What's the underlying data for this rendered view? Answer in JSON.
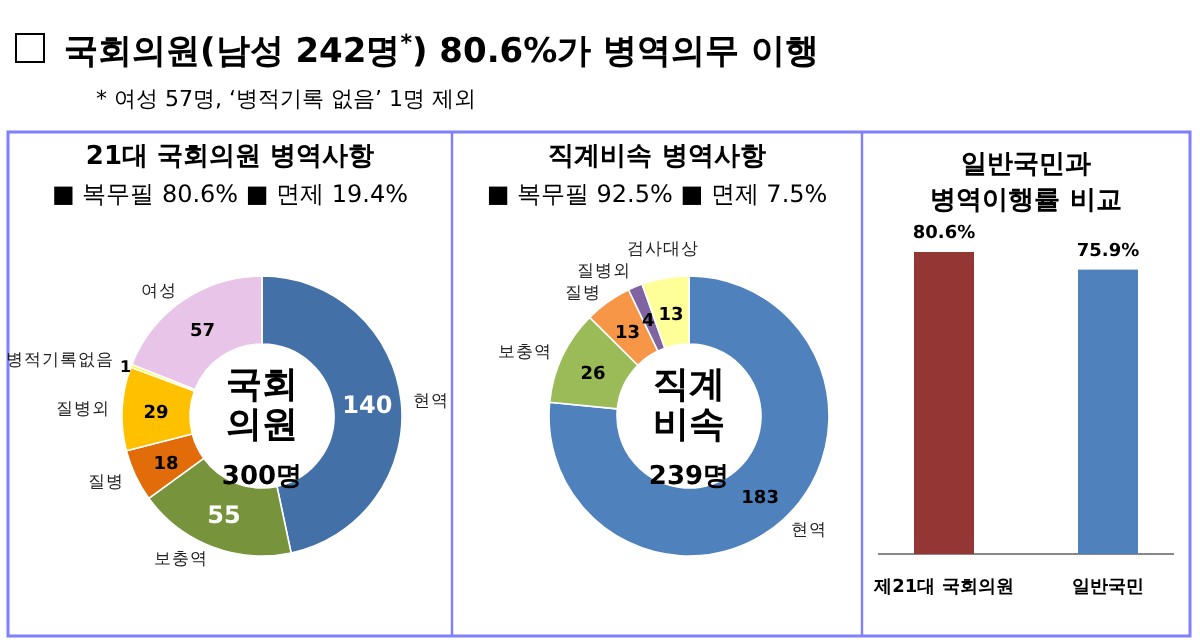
{
  "chart_data": [
    {
      "type": "other",
      "title": "국회의원(남성 242명$^{*}$) 80.6%가 병역의무 이행",
      "subtitle": "* 여성 57명, ‘병적기록 없음’ 1명 제외"
    },
    {
      "type": "donut",
      "title": "21대 국회의원 병역사항",
      "subtitle": "■ 복무필 80.6% ■ 면제 19.4%",
      "categories": [
        "현역",
        "보충역",
        "질병",
        "질병외",
        "병적기록없음",
        "여성"
      ],
      "values": [
        140,
        55,
        18,
        29,
        1,
        57
      ],
      "colors": [
        "#4470a8",
        "#77933c",
        "#e36c0a",
        "#ffc000",
        "#ffff00",
        "#e8c4e8"
      ],
      "data_labels": true,
      "annotations": [
        "국회\n의원",
        "300명"
      ]
    },
    {
      "type": "donut",
      "title": "직계비속 병역사항",
      "subtitle": "■ 복무필 92.5% ■ 면제 7.5%",
      "categories": [
        "현역",
        "보충역",
        "질병",
        "질병외",
        "검사대상"
      ],
      "values": [
        183,
        26,
        13,
        4,
        13
      ],
      "colors": [
        "#4f81bd",
        "#9bbb59",
        "#f79646",
        "#8064a2",
        "#ffff99"
      ],
      "data_labels": true,
      "annotations": [
        "직계\n비속",
        "239명"
      ]
    },
    {
      "type": "bar",
      "title": "일반국민과\n병역이행률 비교",
      "categories": [
        "제21대 국회의원",
        "일반국민"
      ],
      "values": [
        80.6,
        75.9
      ],
      "colors": [
        "#943634",
        "#4f81bd"
      ],
      "value_labels": [
        "80.6%",
        "75.9%"
      ]
    }
  ]
}
